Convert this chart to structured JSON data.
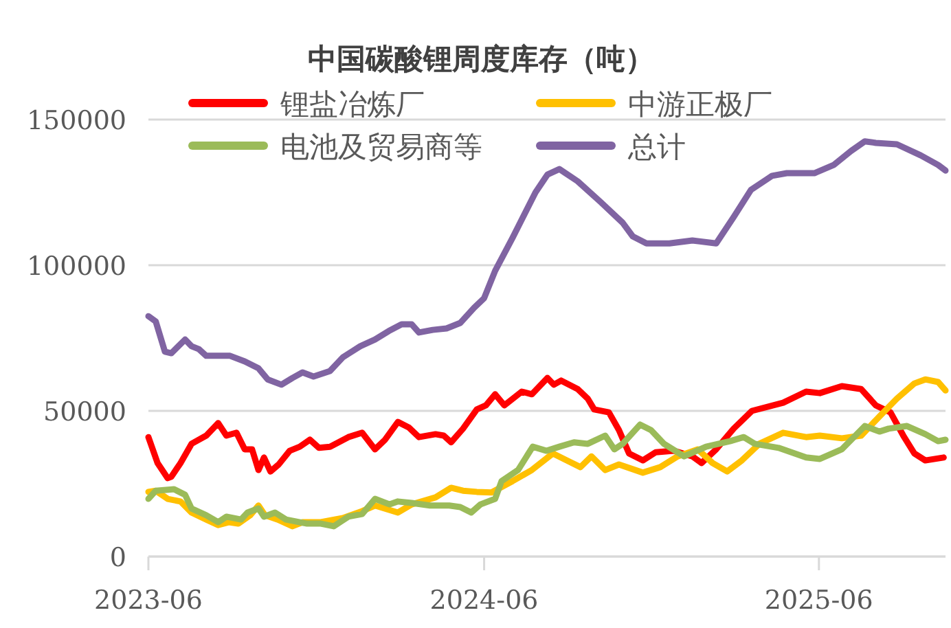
{
  "chart_data": {
    "type": "line",
    "title": "中国碳酸锂周度库存（吨）",
    "legend": "top",
    "grid": "y",
    "marker": "none",
    "line_style": "solid",
    "ylim": [
      0,
      150000
    ],
    "yticks": [
      0,
      50000,
      100000,
      150000
    ],
    "xlim": [
      "2023-06-01",
      "2025-10-17"
    ],
    "xticks": [
      {
        "value": "2023-06-01",
        "label": "2023-06"
      },
      {
        "value": "2024-06-01",
        "label": "2024-06"
      },
      {
        "value": "2025-06-01",
        "label": "2025-06"
      }
    ],
    "series": [
      {
        "name": "锂盐冶炼厂",
        "color": "#ff0000",
        "x": [
          "2023-06-01",
          "2023-06-11",
          "2023-06-22",
          "2023-06-26",
          "2023-07-06",
          "2023-07-18",
          "2023-08-03",
          "2023-08-16",
          "2023-08-25",
          "2023-09-05",
          "2023-09-14",
          "2023-09-22",
          "2023-09-29",
          "2023-10-05",
          "2023-10-12",
          "2023-10-21",
          "2023-11-02",
          "2023-11-13",
          "2023-11-24",
          "2023-12-04",
          "2023-12-16",
          "2024-01-05",
          "2024-01-20",
          "2024-02-03",
          "2024-02-14",
          "2024-02-28",
          "2024-03-11",
          "2024-03-22",
          "2024-04-09",
          "2024-04-18",
          "2024-04-26",
          "2024-05-09",
          "2024-05-24",
          "2024-06-03",
          "2024-06-13",
          "2024-06-23",
          "2024-07-12",
          "2024-07-23",
          "2024-08-09",
          "2024-08-16",
          "2024-08-24",
          "2024-09-11",
          "2024-09-22",
          "2024-09-29",
          "2024-10-15",
          "2024-10-26",
          "2024-11-06",
          "2024-11-21",
          "2024-12-05",
          "2024-12-25",
          "2025-01-14",
          "2025-01-24",
          "2025-02-09",
          "2025-02-28",
          "2025-03-20",
          "2025-04-23",
          "2025-05-18",
          "2025-06-02",
          "2025-06-26",
          "2025-07-17",
          "2025-08-02",
          "2025-08-18",
          "2025-09-01",
          "2025-09-13",
          "2025-09-25",
          "2025-10-15"
        ],
        "values": [
          41000,
          32100,
          26900,
          27400,
          32100,
          38700,
          41500,
          45800,
          41500,
          42500,
          36800,
          36800,
          29700,
          34000,
          29200,
          31600,
          36300,
          37700,
          40100,
          37300,
          37700,
          41000,
          42500,
          36800,
          40100,
          46200,
          44300,
          41000,
          42000,
          41500,
          39200,
          43900,
          50500,
          51900,
          55700,
          51900,
          56600,
          55700,
          61300,
          59000,
          60400,
          57500,
          54200,
          50500,
          49500,
          43400,
          35400,
          33000,
          35800,
          36300,
          34400,
          32100,
          36800,
          43900,
          50000,
          52800,
          56600,
          56100,
          58500,
          57500,
          51900,
          49500,
          41500,
          35400,
          33000,
          34000
        ]
      },
      {
        "name": "中游正极厂",
        "color": "#ffc000",
        "x": [
          "2023-06-01",
          "2023-06-09",
          "2023-06-22",
          "2023-07-06",
          "2023-07-18",
          "2023-08-03",
          "2023-08-16",
          "2023-08-28",
          "2023-09-07",
          "2023-09-20",
          "2023-09-29",
          "2023-10-06",
          "2023-10-20",
          "2023-11-05",
          "2023-11-16",
          "2023-12-06",
          "2023-12-30",
          "2024-01-20",
          "2024-02-03",
          "2024-02-28",
          "2024-03-14",
          "2024-04-09",
          "2024-04-26",
          "2024-05-09",
          "2024-05-24",
          "2024-06-09",
          "2024-07-02",
          "2024-07-23",
          "2024-08-15",
          "2024-08-30",
          "2024-09-14",
          "2024-09-26",
          "2024-10-11",
          "2024-10-26",
          "2024-11-21",
          "2024-12-10",
          "2024-12-29",
          "2025-01-20",
          "2025-02-05",
          "2025-02-21",
          "2025-03-09",
          "2025-03-28",
          "2025-04-23",
          "2025-05-18",
          "2025-06-02",
          "2025-06-26",
          "2025-07-17",
          "2025-08-06",
          "2025-08-25",
          "2025-09-13",
          "2025-09-25",
          "2025-10-09",
          "2025-10-17"
        ],
        "values": [
          22200,
          22600,
          19800,
          18900,
          15100,
          12700,
          10800,
          11800,
          11300,
          14200,
          17500,
          14200,
          12700,
          10400,
          11800,
          11800,
          13200,
          15600,
          17500,
          15100,
          17900,
          20300,
          23600,
          22600,
          22200,
          22000,
          25900,
          29700,
          35400,
          33000,
          30700,
          34400,
          29700,
          31600,
          28800,
          30700,
          34400,
          36800,
          32100,
          29200,
          33000,
          38700,
          42500,
          41000,
          41500,
          40600,
          41500,
          48100,
          54200,
          59400,
          60800,
          59900,
          57000
        ]
      },
      {
        "name": "电池及贸易商等",
        "color": "#9bbb59",
        "x": [
          "2023-06-01",
          "2023-06-09",
          "2023-06-29",
          "2023-07-11",
          "2023-07-18",
          "2023-08-03",
          "2023-08-16",
          "2023-08-25",
          "2023-09-10",
          "2023-09-17",
          "2023-09-29",
          "2023-10-05",
          "2023-10-17",
          "2023-10-29",
          "2023-11-21",
          "2023-12-06",
          "2023-12-20",
          "2024-01-05",
          "2024-01-20",
          "2024-02-03",
          "2024-02-19",
          "2024-02-28",
          "2024-03-14",
          "2024-04-03",
          "2024-04-24",
          "2024-05-06",
          "2024-05-18",
          "2024-05-28",
          "2024-06-13",
          "2024-06-20",
          "2024-07-08",
          "2024-07-24",
          "2024-08-08",
          "2024-08-22",
          "2024-09-07",
          "2024-09-22",
          "2024-10-11",
          "2024-10-21",
          "2024-10-30",
          "2024-11-18",
          "2024-11-30",
          "2024-12-14",
          "2025-01-05",
          "2025-01-29",
          "2025-02-24",
          "2025-03-11",
          "2025-03-23",
          "2025-04-18",
          "2025-05-18",
          "2025-06-02",
          "2025-06-26",
          "2025-07-21",
          "2025-08-06",
          "2025-08-16",
          "2025-09-05",
          "2025-09-25",
          "2025-10-09",
          "2025-10-17"
        ],
        "values": [
          19800,
          22600,
          23100,
          21200,
          16500,
          14200,
          11800,
          13700,
          12700,
          15100,
          16500,
          13700,
          15100,
          12700,
          11300,
          11300,
          10400,
          13700,
          14600,
          19800,
          17900,
          18900,
          18400,
          17500,
          17500,
          17000,
          15100,
          17900,
          19800,
          25900,
          29700,
          37700,
          36300,
          37700,
          39200,
          38700,
          41500,
          36800,
          38700,
          45300,
          43400,
          38700,
          34400,
          37700,
          39600,
          41000,
          38700,
          37300,
          34000,
          33500,
          36800,
          44800,
          42900,
          43900,
          44800,
          42000,
          39600,
          40100
        ]
      },
      {
        "name": "总计",
        "color": "#8064a2",
        "x": [
          "2023-06-01",
          "2023-06-09",
          "2023-06-19",
          "2023-06-26",
          "2023-07-11",
          "2023-07-18",
          "2023-07-26",
          "2023-08-03",
          "2023-08-18",
          "2023-08-29",
          "2023-09-14",
          "2023-09-29",
          "2023-10-09",
          "2023-10-24",
          "2023-11-05",
          "2023-11-16",
          "2023-11-28",
          "2023-12-16",
          "2023-12-30",
          "2024-01-18",
          "2024-02-03",
          "2024-02-18",
          "2024-03-03",
          "2024-03-14",
          "2024-03-22",
          "2024-04-06",
          "2024-04-21",
          "2024-05-06",
          "2024-05-21",
          "2024-06-01",
          "2024-06-13",
          "2024-07-02",
          "2024-07-27",
          "2024-08-09",
          "2024-08-22",
          "2024-09-11",
          "2024-10-06",
          "2024-10-30",
          "2024-11-10",
          "2024-11-25",
          "2024-12-20",
          "2025-01-14",
          "2025-02-09",
          "2025-02-28",
          "2025-03-19",
          "2025-04-11",
          "2025-04-27",
          "2025-05-27",
          "2025-06-17",
          "2025-07-06",
          "2025-07-21",
          "2025-08-02",
          "2025-08-25",
          "2025-09-20",
          "2025-10-09",
          "2025-10-17"
        ],
        "values": [
          82500,
          80700,
          70300,
          69800,
          74500,
          72200,
          71200,
          68900,
          68900,
          68900,
          67000,
          64600,
          60800,
          59000,
          61300,
          63200,
          61800,
          63700,
          68400,
          72200,
          74500,
          77400,
          79700,
          79700,
          76900,
          77800,
          78300,
          80200,
          85400,
          88700,
          98100,
          109400,
          125000,
          131100,
          133000,
          128800,
          121700,
          114600,
          109900,
          107500,
          107500,
          108500,
          107500,
          116500,
          125900,
          130700,
          131600,
          131600,
          134400,
          139200,
          142500,
          142000,
          141500,
          137700,
          134400,
          132500
        ]
      }
    ]
  }
}
